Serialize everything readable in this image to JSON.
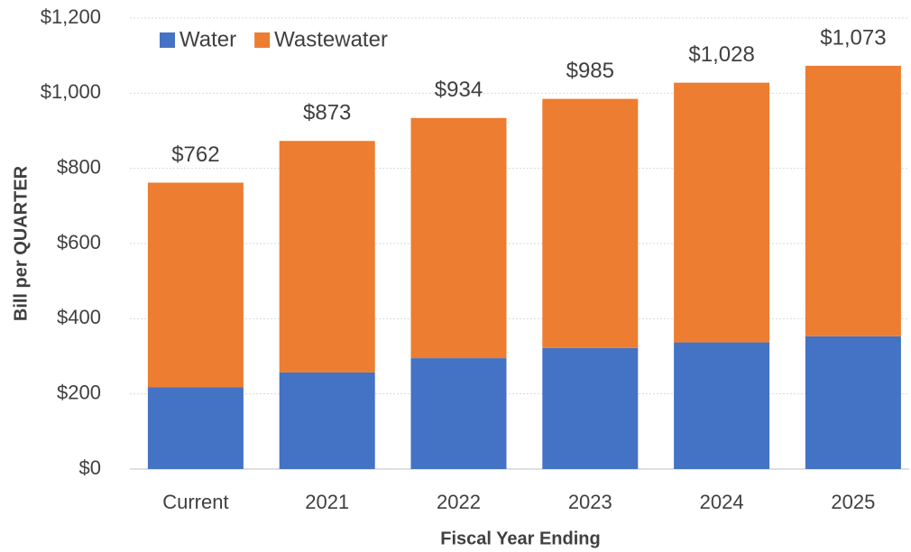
{
  "chart_data": {
    "type": "stacked_bar",
    "xlabel": "Fiscal Year Ending",
    "ylabel": "Bill per QUARTER",
    "categories": [
      "Current",
      "2021",
      "2022",
      "2023",
      "2024",
      "2025"
    ],
    "series": [
      {
        "name": "Water",
        "color": "#4472c4",
        "values": [
          218,
          257,
          295,
          322,
          337,
          353
        ]
      },
      {
        "name": "Wastewater",
        "color": "#ed7d31",
        "values": [
          544,
          616,
          639,
          663,
          691,
          720
        ]
      }
    ],
    "totals": [
      762,
      873,
      934,
      985,
      1028,
      1073
    ],
    "total_labels": [
      "$762",
      "$873",
      "$934",
      "$985",
      "$1,028",
      "$1,073"
    ],
    "ylim": [
      0,
      1200
    ],
    "yticks": [
      {
        "value": 0,
        "label": "$0"
      },
      {
        "value": 200,
        "label": "$200"
      },
      {
        "value": 400,
        "label": "$400"
      },
      {
        "value": 600,
        "label": "$600"
      },
      {
        "value": 800,
        "label": "$800"
      },
      {
        "value": 1000,
        "label": "$1,000"
      },
      {
        "value": 1200,
        "label": "$1,200"
      }
    ],
    "grid": true,
    "legend": "top-left"
  }
}
